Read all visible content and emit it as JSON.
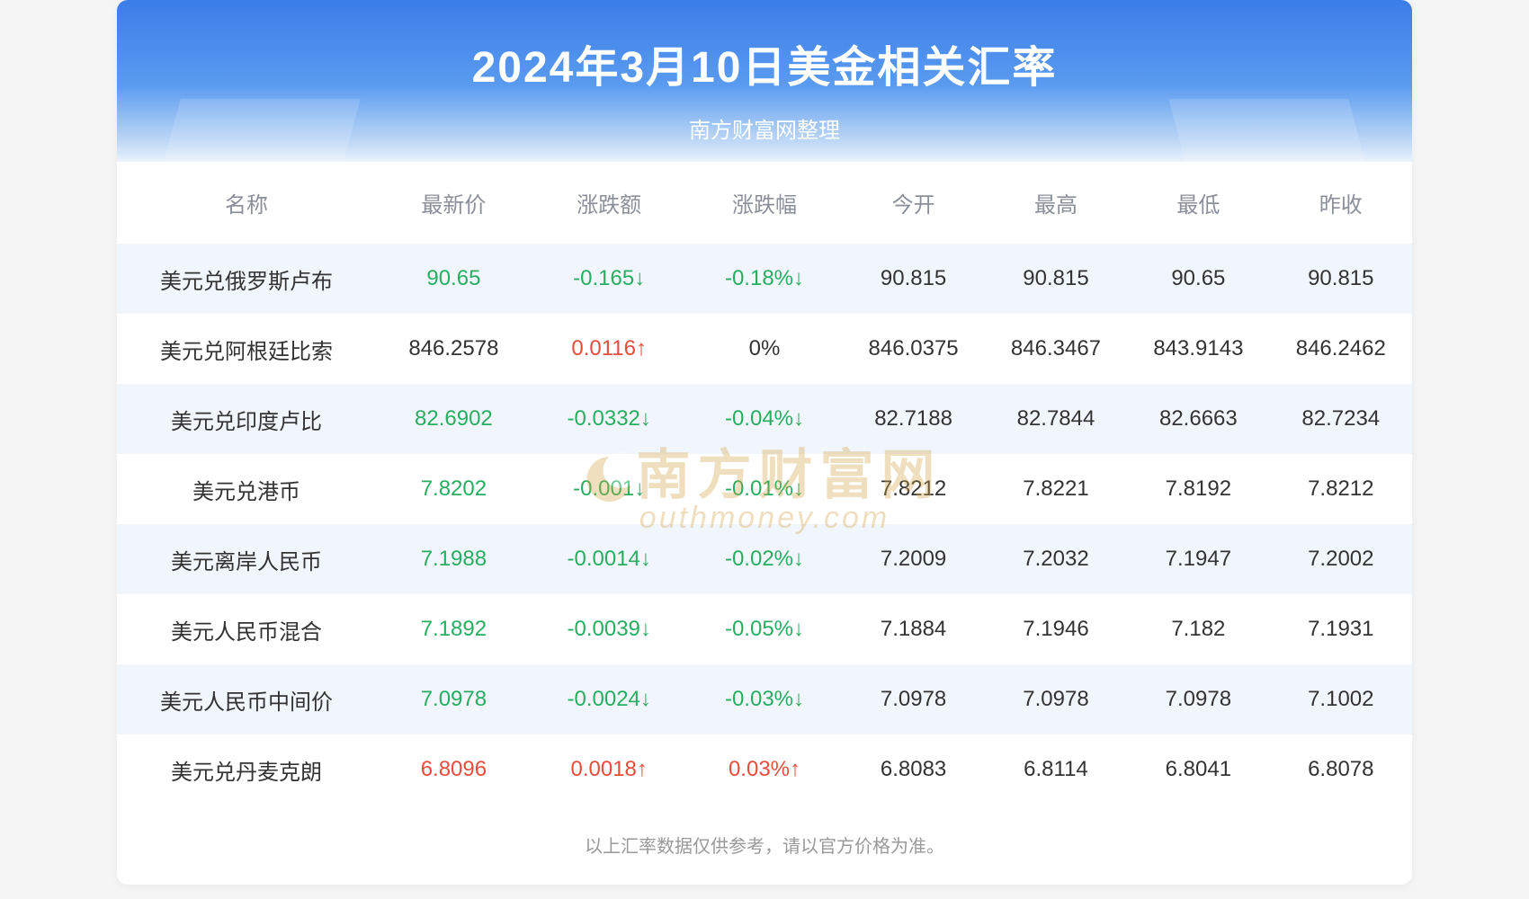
{
  "header": {
    "title": "2024年3月10日美金相关汇率",
    "subtitle": "南方财富网整理"
  },
  "colors": {
    "header_gradient_top": "#3b7de8",
    "header_gradient_bottom": "#c5dcf7",
    "row_odd_bg": "#f1f6fc",
    "row_even_bg": "#ffffff",
    "text_default": "#333333",
    "text_muted": "#8a8f99",
    "up_color": "#e74c3c",
    "down_color": "#27ae60",
    "footer_color": "#999999",
    "watermark_color": "#d4a54a"
  },
  "typography": {
    "title_fontsize": 48,
    "subtitle_fontsize": 24,
    "header_fontsize": 24,
    "cell_fontsize": 24,
    "footer_fontsize": 20
  },
  "table": {
    "columns": [
      {
        "key": "name",
        "label": "名称",
        "width": "20%"
      },
      {
        "key": "price",
        "label": "最新价",
        "width": "12%"
      },
      {
        "key": "change",
        "label": "涨跌额",
        "width": "12%"
      },
      {
        "key": "pct",
        "label": "涨跌幅",
        "width": "12%"
      },
      {
        "key": "open",
        "label": "今开",
        "width": "11%"
      },
      {
        "key": "high",
        "label": "最高",
        "width": "11%"
      },
      {
        "key": "low",
        "label": "最低",
        "width": "11%"
      },
      {
        "key": "prev",
        "label": "昨收",
        "width": "11%"
      }
    ],
    "rows": [
      {
        "name": "美元兑俄罗斯卢布",
        "price": "90.65",
        "price_dir": "down",
        "change": "-0.165",
        "change_dir": "down",
        "change_arrow": "↓",
        "pct": "-0.18%",
        "pct_dir": "down",
        "pct_arrow": "↓",
        "open": "90.815",
        "high": "90.815",
        "low": "90.65",
        "prev": "90.815"
      },
      {
        "name": "美元兑阿根廷比索",
        "price": "846.2578",
        "price_dir": "neutral",
        "change": "0.0116",
        "change_dir": "up",
        "change_arrow": "↑",
        "pct": "0%",
        "pct_dir": "neutral",
        "pct_arrow": "",
        "open": "846.0375",
        "high": "846.3467",
        "low": "843.9143",
        "prev": "846.2462"
      },
      {
        "name": "美元兑印度卢比",
        "price": "82.6902",
        "price_dir": "down",
        "change": "-0.0332",
        "change_dir": "down",
        "change_arrow": "↓",
        "pct": "-0.04%",
        "pct_dir": "down",
        "pct_arrow": "↓",
        "open": "82.7188",
        "high": "82.7844",
        "low": "82.6663",
        "prev": "82.7234"
      },
      {
        "name": "美元兑港币",
        "price": "7.8202",
        "price_dir": "down",
        "change": "-0.001",
        "change_dir": "down",
        "change_arrow": "↓",
        "pct": "-0.01%",
        "pct_dir": "down",
        "pct_arrow": "↓",
        "open": "7.8212",
        "high": "7.8221",
        "low": "7.8192",
        "prev": "7.8212"
      },
      {
        "name": "美元离岸人民币",
        "price": "7.1988",
        "price_dir": "down",
        "change": "-0.0014",
        "change_dir": "down",
        "change_arrow": "↓",
        "pct": "-0.02%",
        "pct_dir": "down",
        "pct_arrow": "↓",
        "open": "7.2009",
        "high": "7.2032",
        "low": "7.1947",
        "prev": "7.2002"
      },
      {
        "name": "美元人民币混合",
        "price": "7.1892",
        "price_dir": "down",
        "change": "-0.0039",
        "change_dir": "down",
        "change_arrow": "↓",
        "pct": "-0.05%",
        "pct_dir": "down",
        "pct_arrow": "↓",
        "open": "7.1884",
        "high": "7.1946",
        "low": "7.182",
        "prev": "7.1931"
      },
      {
        "name": "美元人民币中间价",
        "price": "7.0978",
        "price_dir": "down",
        "change": "-0.0024",
        "change_dir": "down",
        "change_arrow": "↓",
        "pct": "-0.03%",
        "pct_dir": "down",
        "pct_arrow": "↓",
        "open": "7.0978",
        "high": "7.0978",
        "low": "7.0978",
        "prev": "7.1002"
      },
      {
        "name": "美元兑丹麦克朗",
        "price": "6.8096",
        "price_dir": "up",
        "change": "0.0018",
        "change_dir": "up",
        "change_arrow": "↑",
        "pct": "0.03%",
        "pct_dir": "up",
        "pct_arrow": "↑",
        "open": "6.8083",
        "high": "6.8114",
        "low": "6.8041",
        "prev": "6.8078"
      }
    ]
  },
  "footer": {
    "note": "以上汇率数据仅供参考，请以官方价格为准。"
  },
  "watermark": {
    "cn": "南方财富网",
    "en": "outhmoney.com"
  }
}
